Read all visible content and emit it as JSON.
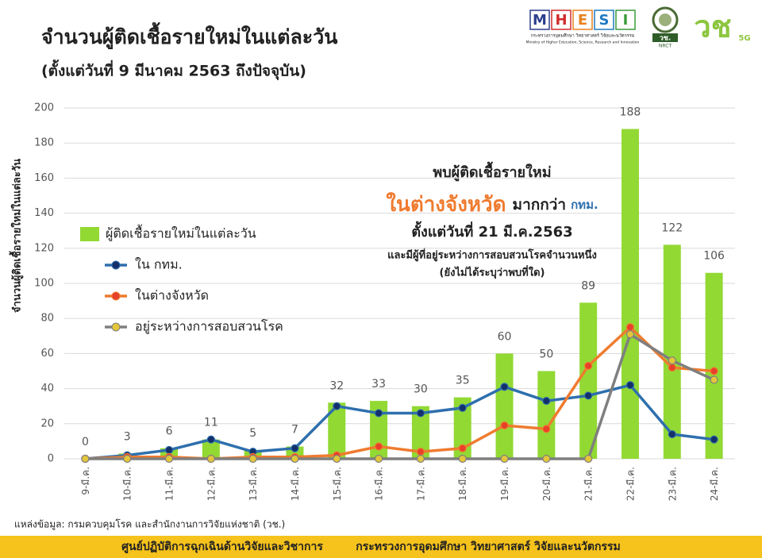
{
  "chart_data": {
    "type": "bar",
    "title": "จำนวนผู้ติดเชื้อรายใหม่ในแต่ละวัน",
    "subtitle": "(ตั้งแต่วันที่ 9 มีนาคม 2563 ถึงปัจจุบัน)",
    "y_label": "จำนวนผู้ติดเชื้อรายใหม่ในแต่ละวัน",
    "categories": [
      "9-มี.ค.",
      "10-มี.ค.",
      "11-มี.ค.",
      "12-มี.ค.",
      "13-มี.ค.",
      "14-มี.ค.",
      "15-มี.ค.",
      "16-มี.ค.",
      "17-มี.ค.",
      "18-มี.ค.",
      "19-มี.ค.",
      "20-มี.ค.",
      "21-มี.ค.",
      "22-มี.ค.",
      "23-มี.ค.",
      "24-มี.ค."
    ],
    "series": [
      {
        "name": "ผู้ติดเชื้อรายใหม่ในแต่ละวัน",
        "type": "bar",
        "color": "#92d933",
        "values": [
          0,
          3,
          6,
          11,
          5,
          7,
          32,
          33,
          30,
          35,
          60,
          50,
          89,
          188,
          122,
          106
        ]
      },
      {
        "name": "ใน กทม.",
        "type": "line",
        "color": "#2e6fad",
        "marker_color": "#14306a",
        "values": [
          0,
          2,
          5,
          11,
          4,
          6,
          30,
          26,
          26,
          29,
          41,
          33,
          36,
          42,
          14,
          11
        ]
      },
      {
        "name": "ในต่างจังหวัด",
        "type": "line",
        "color": "#ef7b2f",
        "marker_color": "#e8412a",
        "values": [
          0,
          1,
          1,
          0,
          1,
          1,
          2,
          7,
          4,
          6,
          19,
          17,
          53,
          75,
          52,
          50
        ]
      },
      {
        "name": "อยู่ระหว่างการสอบสวนโรค",
        "type": "line",
        "color": "#7f7f7f",
        "marker_color": "#e3c63a",
        "values": [
          0,
          0,
          0,
          0,
          0,
          0,
          0,
          0,
          0,
          0,
          0,
          0,
          0,
          71,
          56,
          45
        ]
      }
    ],
    "ylim": [
      0,
      200
    ],
    "yticks": [
      0,
      20,
      40,
      60,
      80,
      100,
      120,
      140,
      160,
      180,
      200
    ],
    "grid": true,
    "annotations": [
      "พบผู้ติดเชื้อรายใหม่",
      "ในต่างจังหวัด",
      "มากกว่า",
      "กทม.",
      "ตั้งแต่วันที่ 21 มี.ค.2563",
      "และมีผู้ที่อยู่ระหว่างการสอบสวนโรคจำนวนหนึ่ง",
      "(ยังไม่ได้ระบุว่าพบที่ใด)"
    ]
  },
  "source": "แหล่งข้อมูล: กรมควบคุมโรค และสำนักงานการวิจัยแห่งชาติ (วช.)",
  "footer": [
    "ศูนย์ปฏิบัติการฉุกเฉินด้านวิจัยและวิชาการ",
    "กระทรวงการอุดมศึกษา วิทยาศาสตร์ วิจัยและนวัตกรรม"
  ],
  "logos": {
    "mhesi": [
      "M",
      "H",
      "E",
      "S",
      "I"
    ],
    "mhesi_th": "กระทรวงการอุดมศึกษา วิทยาศาสตร์ วิจัยและนวัตกรรม",
    "mhesi_en": "Ministry of Higher Education, Science, Research and Innovation",
    "nrct_th": "วช.",
    "nrct_en": "NRCT",
    "brand": "วช",
    "brand_tag": "5G"
  }
}
